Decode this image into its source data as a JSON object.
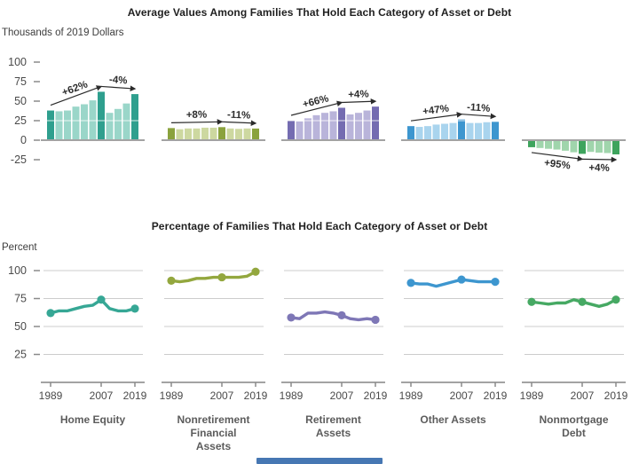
{
  "figure": {
    "background": "#ffffff"
  },
  "categories": [
    {
      "lines": [
        "Home Equity",
        "",
        ""
      ]
    },
    {
      "lines": [
        "Nonretirement",
        "Financial",
        "Assets"
      ]
    },
    {
      "lines": [
        "Retirement",
        "Assets",
        ""
      ]
    },
    {
      "lines": [
        "Other Assets",
        "",
        ""
      ]
    },
    {
      "lines": [
        "Nonmortgage",
        "Debt",
        ""
      ]
    }
  ],
  "chart_data": [
    {
      "type": "bar",
      "title": "Average Values Among Families That Hold Each Category of Asset or Debt",
      "ylabel": "Thousands of 2019 Dollars",
      "yticks": [
        100,
        75,
        50,
        25,
        0,
        -25
      ],
      "ylim": [
        -30,
        110
      ],
      "grid": false,
      "legend": "none",
      "xtick_positions": [
        0,
        6,
        10
      ],
      "xtick_labels": [
        "1989",
        "2007",
        "2019"
      ],
      "highlight_indices": [
        0,
        6,
        10
      ],
      "groups": [
        {
          "name": "Home Equity",
          "color_dark": "#2f9f8e",
          "color_light": "#9ad6c9",
          "values": [
            38,
            37,
            38,
            43,
            46,
            51,
            62,
            35,
            40,
            47,
            59
          ],
          "annotations": [
            {
              "label": "+62%",
              "from": 0,
              "to": 6
            },
            {
              "label": "-4%",
              "from": 6,
              "to": 10
            }
          ]
        },
        {
          "name": "Nonretirement Financial Assets",
          "color_dark": "#8aa23d",
          "color_light": "#cdd8a0",
          "values": [
            15.5,
            14,
            15,
            15,
            16,
            16,
            16.7,
            15,
            14.5,
            15,
            14.9
          ],
          "annotations": [
            {
              "label": "+8%",
              "from": 0,
              "to": 6
            },
            {
              "label": "-11%",
              "from": 6,
              "to": 10
            }
          ]
        },
        {
          "name": "Retirement Assets",
          "color_dark": "#746cb1",
          "color_light": "#b9b4da",
          "values": [
            25,
            24,
            28,
            32,
            35,
            37,
            41.5,
            33,
            35,
            38,
            43
          ],
          "annotations": [
            {
              "label": "+66%",
              "from": 0,
              "to": 6
            },
            {
              "label": "+4%",
              "from": 6,
              "to": 10
            }
          ]
        },
        {
          "name": "Other Assets",
          "color_dark": "#3d96cf",
          "color_light": "#a9d4ee",
          "values": [
            18,
            17,
            18,
            20,
            21,
            22,
            26.5,
            22,
            22,
            23,
            23.5
          ],
          "annotations": [
            {
              "label": "+47%",
              "from": 0,
              "to": 6
            },
            {
              "label": "-11%",
              "from": 6,
              "to": 10
            }
          ]
        },
        {
          "name": "Nonmortgage Debt",
          "color_dark": "#3ea45d",
          "color_light": "#a0d5ac",
          "values": [
            -9,
            -10,
            -11,
            -12,
            -13.5,
            -15.5,
            -17.5,
            -15,
            -16,
            -16.5,
            -18.2
          ],
          "annotations": [
            {
              "label": "+95%",
              "from": 0,
              "to": 6
            },
            {
              "label": "+4%",
              "from": 6,
              "to": 10
            }
          ]
        }
      ]
    },
    {
      "type": "line",
      "title": "Percentage of Families That Hold Each Category of Asset or Debt",
      "ylabel": "Percent",
      "yticks": [
        100,
        75,
        50,
        25
      ],
      "ylim": [
        0,
        112
      ],
      "grid": true,
      "legend": "none",
      "xtick_positions": [
        0,
        6,
        10
      ],
      "xtick_labels": [
        "1989",
        "2007",
        "2019"
      ],
      "marker_indices": [
        0,
        6,
        10
      ],
      "series": [
        {
          "name": "Home Equity",
          "color": "#36a795",
          "values": [
            62,
            64,
            64,
            66,
            68,
            69,
            74,
            66,
            64,
            64,
            66
          ]
        },
        {
          "name": "Nonretirement Financial Assets",
          "color": "#93a73e",
          "values": [
            91,
            90,
            91,
            93,
            93,
            94,
            94,
            94,
            94,
            95,
            99
          ]
        },
        {
          "name": "Retirement Assets",
          "color": "#7e77b6",
          "values": [
            58,
            57,
            62,
            62,
            63,
            62,
            60,
            57,
            56,
            57,
            56
          ]
        },
        {
          "name": "Other Assets",
          "color": "#3d96cf",
          "values": [
            89,
            88,
            88,
            86,
            88,
            90,
            92,
            91,
            90,
            90,
            90
          ]
        },
        {
          "name": "Nonmortgage Debt",
          "color": "#46a963",
          "values": [
            72,
            71,
            70,
            71,
            71,
            74,
            72,
            70,
            68,
            70,
            74
          ]
        }
      ]
    }
  ],
  "footer_bar": {
    "color": "#4677b3"
  }
}
